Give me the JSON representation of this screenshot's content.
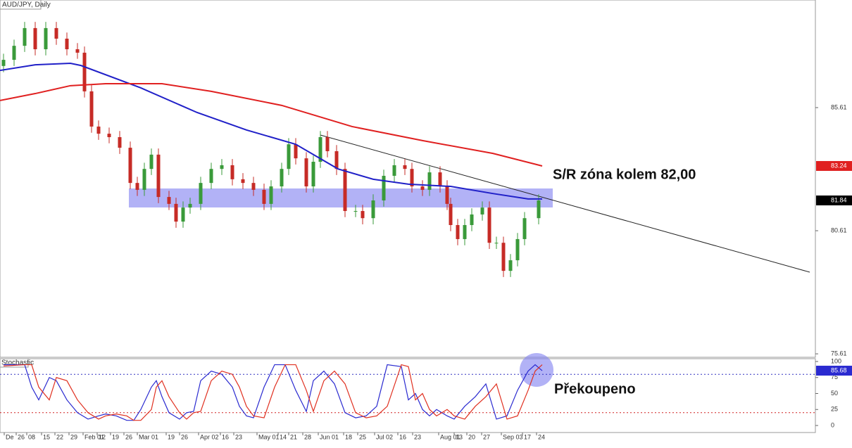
{
  "chart_data": [
    {
      "type": "candlestick",
      "title": "AUD/JPY, Daily",
      "annotation": "S/R zóna kolem 82,00",
      "up_color": "#3a9a3a",
      "down_color": "#c62b26",
      "xlim": [
        0,
        289.5
      ],
      "ylim": [
        75.47,
        89.98
      ],
      "yticks": [
        75.61,
        80.61,
        85.61
      ],
      "x": [
        1.25,
        5,
        8.75,
        12.5,
        16.25,
        20,
        23.75,
        27.5,
        30,
        32.5,
        35,
        38.75,
        42.5,
        46.25,
        48.75,
        51.25,
        53.75,
        56.25,
        60,
        62.5,
        65,
        67.5,
        71.25,
        75,
        78.75,
        82.5,
        86.25,
        90,
        93.75,
        96.25,
        100,
        102.5,
        105,
        108.75,
        111.25,
        113.75,
        116.25,
        119.5,
        122.5,
        126.25,
        128.75,
        132.5,
        136.25,
        140,
        143.75,
        146.25,
        150,
        152.5,
        156.25,
        158.75,
        160,
        162.5,
        165,
        167.5,
        171.25,
        173.75,
        176.25,
        178.75,
        181.25,
        183.75,
        186.25,
        191.25
      ],
      "open": [
        87.3,
        87.55,
        88.12,
        88.84,
        87.98,
        88.84,
        88.41,
        87.98,
        87.84,
        86.27,
        84.84,
        84.55,
        84.41,
        83.98,
        82.55,
        82.27,
        83.12,
        83.7,
        81.98,
        81.7,
        80.98,
        81.55,
        81.7,
        82.55,
        83.12,
        83.27,
        82.7,
        82.55,
        82.27,
        81.7,
        82.41,
        83.12,
        84.12,
        83.55,
        82.41,
        83.41,
        84.41,
        83.84,
        83.12,
        81.41,
        81.41,
        81.12,
        81.84,
        82.84,
        83.27,
        83.12,
        82.41,
        82.27,
        82.98,
        82.41,
        81.7,
        80.84,
        80.27,
        80.84,
        81.27,
        81.55,
        80.12,
        80.12,
        78.98,
        79.41,
        80.27,
        81.12
      ],
      "high": [
        87.8,
        88.37,
        89.09,
        89.09,
        89.09,
        89.09,
        88.66,
        88.23,
        88.09,
        86.52,
        85.09,
        84.8,
        84.66,
        84.23,
        82.8,
        83.37,
        83.95,
        83.95,
        82.23,
        81.95,
        81.8,
        81.95,
        82.8,
        83.37,
        83.52,
        83.52,
        82.95,
        82.8,
        82.52,
        82.66,
        83.37,
        84.37,
        84.37,
        83.8,
        83.66,
        84.66,
        84.66,
        84.09,
        83.37,
        81.66,
        81.66,
        82.09,
        83.09,
        83.52,
        83.52,
        83.37,
        82.66,
        83.23,
        83.23,
        82.66,
        81.95,
        81.09,
        81.09,
        81.52,
        81.8,
        81.8,
        80.37,
        80.37,
        79.66,
        80.52,
        81.37,
        82.09
      ],
      "low": [
        87.05,
        87.3,
        87.87,
        87.73,
        87.73,
        88.16,
        87.73,
        87.59,
        86.02,
        84.59,
        84.3,
        84.16,
        83.73,
        82.3,
        82.02,
        82.02,
        82.87,
        81.73,
        81.45,
        80.73,
        80.73,
        81.3,
        81.45,
        82.3,
        82.87,
        82.45,
        82.3,
        82.02,
        81.45,
        81.45,
        82.16,
        82.87,
        83.3,
        82.16,
        82.16,
        83.16,
        83.59,
        82.87,
        81.16,
        81.16,
        80.87,
        80.87,
        81.59,
        82.59,
        82.87,
        82.16,
        82.02,
        82.02,
        82.16,
        81.45,
        80.59,
        80.02,
        80.02,
        80.59,
        81.02,
        79.87,
        79.87,
        78.73,
        78.73,
        79.16,
        80.02,
        80.87
      ],
      "close": [
        87.55,
        88.12,
        88.84,
        87.98,
        88.84,
        88.41,
        87.98,
        87.84,
        86.27,
        84.84,
        84.55,
        84.41,
        83.98,
        82.55,
        82.27,
        83.12,
        83.7,
        81.98,
        81.7,
        80.98,
        81.55,
        81.7,
        82.55,
        83.12,
        83.27,
        82.7,
        82.55,
        82.27,
        81.7,
        82.41,
        83.12,
        84.12,
        83.55,
        82.41,
        83.41,
        84.41,
        83.84,
        83.12,
        81.41,
        81.41,
        81.12,
        81.84,
        82.84,
        83.27,
        83.12,
        82.41,
        82.27,
        82.98,
        82.41,
        81.7,
        80.84,
        80.27,
        80.84,
        81.27,
        81.55,
        80.12,
        80.12,
        78.98,
        79.41,
        80.27,
        81.12,
        81.84
      ],
      "series": [
        {
          "color": "#2020c8",
          "x": [
            0,
            12.5,
            25,
            28.75,
            50,
            70,
            87.5,
            105,
            120,
            132.5,
            145,
            160,
            175,
            187.5,
            192.5
          ],
          "values": [
            87.12,
            87.35,
            87.41,
            87.32,
            86.41,
            85.41,
            84.7,
            84.12,
            83.12,
            82.7,
            82.5,
            82.41,
            82.12,
            81.9,
            81.9
          ]
        },
        {
          "color": "#e02020",
          "x": [
            0,
            12.5,
            25,
            37.5,
            57.5,
            75,
            100,
            125,
            150,
            175,
            192.5
          ],
          "values": [
            85.9,
            86.18,
            86.5,
            86.58,
            86.58,
            86.27,
            85.7,
            84.84,
            84.27,
            83.75,
            83.24
          ]
        }
      ]
    },
    {
      "type": "line",
      "title": "Stochastic",
      "annotation": "Překoupeno",
      "xlim": [
        0,
        289.5
      ],
      "ylim": [
        -11,
        104.4
      ],
      "yticks": [
        0,
        25,
        50,
        75,
        100
      ],
      "levels": [
        {
          "value": 80,
          "color": "#3030c0"
        },
        {
          "value": 20,
          "color": "#d02020"
        }
      ],
      "x": [
        1.25,
        8.75,
        11.25,
        13.75,
        17.5,
        20,
        23.75,
        27.5,
        31.25,
        35,
        37.5,
        41.25,
        45,
        47.5,
        50,
        53.75,
        55.5,
        57.5,
        60,
        63.75,
        66.25,
        68.75,
        71.25,
        75,
        78.75,
        82.5,
        85,
        87.5,
        90,
        93.75,
        97.5,
        101.25,
        105,
        108.75,
        111.25,
        115,
        118.75,
        122.5,
        126.25,
        130,
        133.75,
        137.5,
        142.5,
        145,
        147.5,
        150,
        152.5,
        155,
        158.75,
        161.25,
        165,
        168.75,
        172.5,
        176.25,
        180,
        183.75,
        187.5,
        190,
        192.5
      ],
      "xticks": [
        {
          "value": 1.5,
          "label": "De"
        },
        {
          "value": 5.75,
          "label": "26"
        },
        {
          "value": 9.5,
          "label": "08"
        },
        {
          "value": 14.75,
          "label": "15"
        },
        {
          "value": 19.5,
          "label": "22"
        },
        {
          "value": 24.5,
          "label": "29"
        },
        {
          "value": 29.5,
          "label": "Feb 01"
        },
        {
          "value": 34.5,
          "label": "12"
        },
        {
          "value": 39.25,
          "label": "19"
        },
        {
          "value": 44,
          "label": "26"
        },
        {
          "value": 48.75,
          "label": "Mar 01"
        },
        {
          "value": 59,
          "label": "19"
        },
        {
          "value": 63.75,
          "label": "26"
        },
        {
          "value": 70.5,
          "label": "Apr 02"
        },
        {
          "value": 78.25,
          "label": "16"
        },
        {
          "value": 83,
          "label": "23"
        },
        {
          "value": 91.25,
          "label": "May 01"
        },
        {
          "value": 98.75,
          "label": "14"
        },
        {
          "value": 102.5,
          "label": "21"
        },
        {
          "value": 107.5,
          "label": "28"
        },
        {
          "value": 113,
          "label": "Jun 01"
        },
        {
          "value": 122,
          "label": "18"
        },
        {
          "value": 127,
          "label": "25"
        },
        {
          "value": 133,
          "label": "Jul 02"
        },
        {
          "value": 141.25,
          "label": "16"
        },
        {
          "value": 146.5,
          "label": "23"
        },
        {
          "value": 155.75,
          "label": "Aug 01"
        },
        {
          "value": 161.25,
          "label": "13"
        },
        {
          "value": 165.75,
          "label": "20"
        },
        {
          "value": 171,
          "label": "27"
        },
        {
          "value": 178,
          "label": "Sep 03"
        },
        {
          "value": 185.5,
          "label": "17"
        },
        {
          "value": 190.5,
          "label": "24"
        }
      ],
      "series": [
        {
          "color": "#2a2ad0",
          "values": [
            95,
            95,
            60,
            40,
            75,
            70,
            40,
            20,
            10,
            15,
            18,
            15,
            8,
            8,
            25,
            60,
            70,
            45,
            20,
            10,
            20,
            22,
            70,
            85,
            80,
            60,
            30,
            15,
            12,
            60,
            95,
            95,
            55,
            22,
            70,
            85,
            65,
            20,
            12,
            15,
            30,
            95,
            92,
            40,
            50,
            25,
            15,
            25,
            15,
            10,
            30,
            45,
            65,
            10,
            15,
            55,
            85,
            95,
            85.68
          ]
        },
        {
          "color": "#e03020",
          "values": [
            93,
            95,
            95,
            60,
            40,
            75,
            70,
            40,
            20,
            10,
            15,
            18,
            15,
            8,
            8,
            25,
            60,
            70,
            45,
            20,
            10,
            20,
            22,
            70,
            85,
            80,
            60,
            30,
            15,
            12,
            60,
            95,
            95,
            55,
            22,
            70,
            85,
            65,
            20,
            12,
            15,
            30,
            95,
            92,
            40,
            50,
            25,
            15,
            25,
            15,
            10,
            30,
            45,
            65,
            10,
            15,
            55,
            85,
            95
          ]
        }
      ]
    }
  ]
}
